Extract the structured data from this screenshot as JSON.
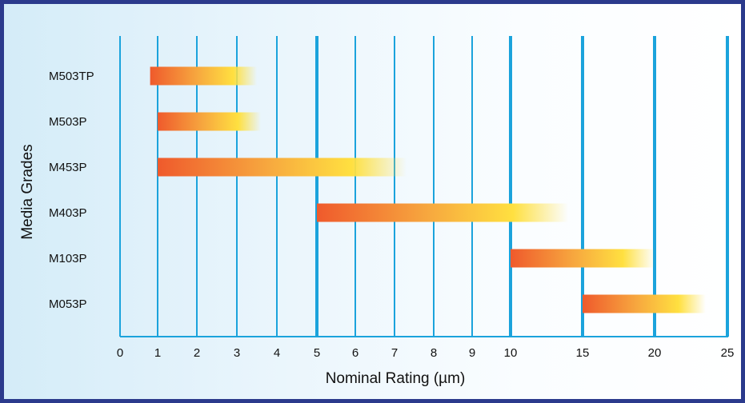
{
  "chart_data": {
    "type": "bar",
    "orientation": "horizontal-range",
    "title": "",
    "xlabel": "Nominal Rating (µm)",
    "ylabel": "Media Grades",
    "x_ticks": [
      "0",
      "1",
      "2",
      "3",
      "4",
      "5",
      "6",
      "7",
      "8",
      "9",
      "10",
      "15",
      "20",
      "25"
    ],
    "categories": [
      "M503TP",
      "M503P",
      "M453P",
      "M403P",
      "M103P",
      "M053P"
    ],
    "ranges": [
      {
        "start": 0.8,
        "end": 3.5
      },
      {
        "start": 1,
        "end": 3.6
      },
      {
        "start": 1,
        "end": 7.3
      },
      {
        "start": 5,
        "end": 14
      },
      {
        "start": 10,
        "end": 20
      },
      {
        "start": 15,
        "end": 23.5
      }
    ],
    "grid": true,
    "colors": {
      "grid": "#1ba3dc",
      "bar_start": "#ef5a2c",
      "bar_mid": "#f7a93f",
      "bar_end": "#ffe040",
      "frame": "#2b3a8c"
    }
  }
}
